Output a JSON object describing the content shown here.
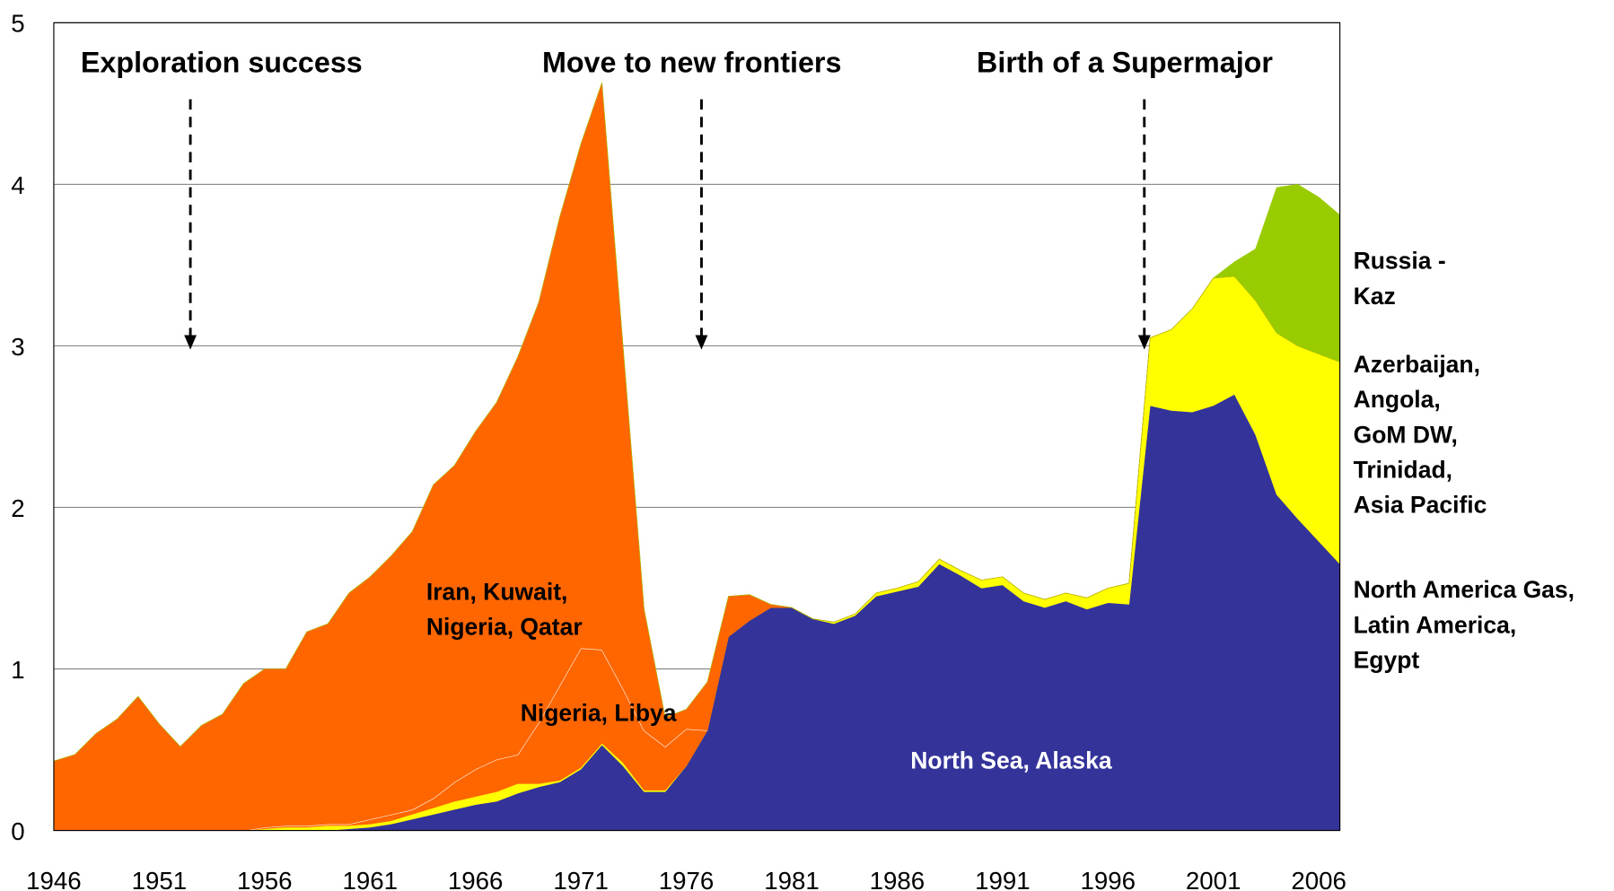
{
  "chart_data": {
    "type": "stacked-area",
    "x": [
      1946,
      1947,
      1948,
      1949,
      1950,
      1951,
      1952,
      1953,
      1954,
      1955,
      1956,
      1957,
      1958,
      1959,
      1960,
      1961,
      1962,
      1963,
      1964,
      1965,
      1966,
      1967,
      1968,
      1969,
      1970,
      1971,
      1972,
      1973,
      1974,
      1975,
      1976,
      1977,
      1978,
      1979,
      1980,
      1981,
      1982,
      1983,
      1984,
      1985,
      1986,
      1987,
      1988,
      1989,
      1990,
      1991,
      1992,
      1993,
      1994,
      1995,
      1996,
      1997,
      1998,
      1999,
      2000,
      2001,
      2002,
      2003,
      2004,
      2005,
      2006,
      2007
    ],
    "xlim": [
      1946,
      2007
    ],
    "xticks": [
      1946,
      1951,
      1956,
      1961,
      1966,
      1971,
      1976,
      1981,
      1986,
      1991,
      1996,
      2001,
      2006
    ],
    "ylim": [
      0,
      5
    ],
    "yticks": [
      0,
      1,
      2,
      3,
      4,
      5
    ],
    "grid": true,
    "series": [
      {
        "color": "#333399",
        "values": [
          0,
          0,
          0,
          0,
          0,
          0,
          0,
          0,
          0,
          0,
          0,
          0,
          0,
          0,
          0.01,
          0.02,
          0.04,
          0.07,
          0.1,
          0.13,
          0.16,
          0.18,
          0.23,
          0.27,
          0.3,
          0.38,
          0.53,
          0.4,
          0.24,
          0.24,
          0.4,
          0.62,
          1.2,
          1.3,
          1.38,
          1.38,
          1.31,
          1.28,
          1.33,
          1.45,
          1.48,
          1.51,
          1.65,
          1.58,
          1.5,
          1.52,
          1.42,
          1.38,
          1.42,
          1.37,
          1.41,
          1.4,
          2.63,
          2.6,
          2.59,
          2.63,
          2.7,
          2.45,
          2.08,
          1.93,
          1.79,
          1.65
        ]
      },
      {
        "color": "#ffff00",
        "values": [
          0,
          0,
          0,
          0,
          0,
          0,
          0,
          0,
          0,
          0,
          0.01,
          0.02,
          0.02,
          0.03,
          0.02,
          0.02,
          0.02,
          0.03,
          0.04,
          0.05,
          0.05,
          0.06,
          0.06,
          0.02,
          0.01,
          0.01,
          0.01,
          0.02,
          0.01,
          0.01,
          0,
          0,
          0,
          0,
          0,
          0,
          0,
          0.01,
          0.01,
          0.02,
          0.02,
          0.03,
          0.03,
          0.03,
          0.05,
          0.05,
          0.05,
          0.05,
          0.05,
          0.07,
          0.09,
          0.13,
          0.42,
          0.5,
          0.64,
          0.79,
          0.73,
          0.83,
          1.0,
          1.07,
          1.16,
          1.25
        ]
      },
      {
        "color": "#ff6600",
        "outline": "#ffffff",
        "values": [
          0,
          0,
          0,
          0,
          0,
          0,
          0,
          0,
          0,
          0,
          0.01,
          0.01,
          0.01,
          0.01,
          0.01,
          0.03,
          0.04,
          0.03,
          0.06,
          0.12,
          0.17,
          0.2,
          0.18,
          0.38,
          0.59,
          0.74,
          0.58,
          0.46,
          0.37,
          0.27,
          0.23,
          0,
          0,
          0,
          0,
          0,
          0,
          0,
          0,
          0,
          0,
          0,
          0,
          0,
          0,
          0,
          0,
          0,
          0,
          0,
          0,
          0,
          0,
          0,
          0,
          0,
          0,
          0,
          0,
          0,
          0,
          0
        ]
      },
      {
        "color": "#ff6600",
        "values": [
          0.43,
          0.47,
          0.6,
          0.69,
          0.83,
          0.66,
          0.52,
          0.65,
          0.72,
          0.91,
          0.98,
          0.97,
          1.2,
          1.24,
          1.43,
          1.5,
          1.6,
          1.72,
          1.94,
          1.96,
          2.09,
          2.21,
          2.46,
          2.6,
          2.9,
          3.12,
          3.51,
          2.12,
          0.75,
          0.18,
          0.12,
          0.3,
          0.25,
          0.16,
          0.02,
          0,
          0,
          0,
          0,
          0,
          0,
          0,
          0,
          0,
          0,
          0,
          0,
          0,
          0,
          0,
          0,
          0,
          0,
          0,
          0,
          0,
          0,
          0,
          0,
          0,
          0,
          0
        ]
      },
      {
        "color": "#99cc00",
        "values": [
          0,
          0,
          0,
          0,
          0,
          0,
          0,
          0,
          0,
          0,
          0,
          0,
          0,
          0,
          0,
          0,
          0,
          0,
          0,
          0,
          0,
          0,
          0,
          0,
          0,
          0,
          0,
          0,
          0,
          0,
          0,
          0,
          0,
          0,
          0,
          0,
          0,
          0,
          0,
          0,
          0,
          0,
          0,
          0,
          0,
          0,
          0,
          0,
          0,
          0,
          0,
          0,
          0,
          0,
          0,
          0,
          0.09,
          0.32,
          0.9,
          1.0,
          0.97,
          0.91
        ]
      }
    ],
    "phases": [
      "Exploration success",
      "Move to new frontiers",
      "Birth of a Supermajor"
    ],
    "area_labels": [
      [
        "Iran, Kuwait,",
        "Nigeria, Qatar"
      ],
      [
        "Nigeria, Libya"
      ],
      [
        "North Sea, Alaska"
      ],
      [
        "Russia -",
        "Kaz"
      ],
      [
        "Azerbaijan,",
        "Angola,",
        "GoM DW,",
        "Trinidad,",
        "Asia Pacific"
      ],
      [
        "North America Gas,",
        "Latin America,",
        "Egypt"
      ]
    ]
  }
}
